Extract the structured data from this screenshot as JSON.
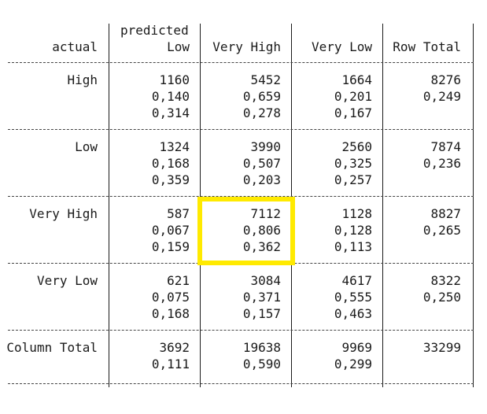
{
  "header": {
    "predicted_label": "predicted",
    "actual_label": "actual",
    "columns": [
      "Low",
      "Very High",
      "Very Low",
      "Row Total"
    ]
  },
  "rows": [
    {
      "label": "High",
      "counts": [
        "1160",
        "5452",
        "1664",
        "8276"
      ],
      "row_props": [
        "0,140",
        "0,659",
        "0,201",
        "0,249"
      ],
      "col_props": [
        "0,314",
        "0,278",
        "0,167"
      ]
    },
    {
      "label": "Low",
      "counts": [
        "1324",
        "3990",
        "2560",
        "7874"
      ],
      "row_props": [
        "0,168",
        "0,507",
        "0,325",
        "0,236"
      ],
      "col_props": [
        "0,359",
        "0,203",
        "0,257"
      ]
    },
    {
      "label": "Very High",
      "counts": [
        "587",
        "7112",
        "1128",
        "8827"
      ],
      "row_props": [
        "0,067",
        "0,806",
        "0,128",
        "0,265"
      ],
      "col_props": [
        "0,159",
        "0,362",
        "0,113"
      ]
    },
    {
      "label": "Very Low",
      "counts": [
        "621",
        "3084",
        "4617",
        "8322"
      ],
      "row_props": [
        "0,075",
        "0,371",
        "0,555",
        "0,250"
      ],
      "col_props": [
        "0,168",
        "0,157",
        "0,463"
      ]
    }
  ],
  "totals": {
    "label": "Column Total",
    "counts": [
      "3692",
      "19638",
      "9969",
      "33299"
    ],
    "props": [
      "0,111",
      "0,590",
      "0,299"
    ]
  },
  "highlight": {
    "row": 2,
    "col": 1,
    "color": "#ffea00"
  }
}
